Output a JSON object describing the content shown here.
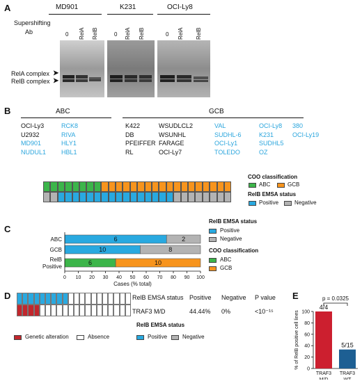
{
  "panels": {
    "A": "A",
    "B": "B",
    "C": "C",
    "D": "D",
    "E": "E"
  },
  "panelA": {
    "cell_lines": [
      "MD901",
      "K231",
      "OCI-Ly8"
    ],
    "lane_labels": [
      "0",
      "RelA",
      "RelB"
    ],
    "supershift_label_1": "Supershifting",
    "supershift_label_2": "Ab",
    "complex_labels": [
      "RelA complex",
      "RelB complex"
    ]
  },
  "panelB": {
    "abc_header": "ABC",
    "gcb_header": "GCB",
    "abc_rows": [
      [
        {
          "t": "OCI-Ly3",
          "pos": false
        },
        {
          "t": "RCK8",
          "pos": true
        }
      ],
      [
        {
          "t": "U2932",
          "pos": false
        },
        {
          "t": "RIVA",
          "pos": true
        }
      ],
      [
        {
          "t": "MD901",
          "pos": true
        },
        {
          "t": "HLY1",
          "pos": true
        }
      ],
      [
        {
          "t": "NUDUL1",
          "pos": true
        },
        {
          "t": "HBL1",
          "pos": true
        }
      ]
    ],
    "gcb_rows": [
      [
        {
          "t": "K422",
          "pos": false
        },
        {
          "t": "WSUDLCL2",
          "pos": false
        },
        {
          "t": "VAL",
          "pos": true
        },
        {
          "t": "OCI-Ly8",
          "pos": true
        },
        {
          "t": "380",
          "pos": true
        }
      ],
      [
        {
          "t": "DB",
          "pos": false
        },
        {
          "t": "WSUNHL",
          "pos": false
        },
        {
          "t": "SUDHL-6",
          "pos": true
        },
        {
          "t": "K231",
          "pos": true
        },
        {
          "t": "OCI-Ly19",
          "pos": true
        }
      ],
      [
        {
          "t": "PFEIFFER",
          "pos": false
        },
        {
          "t": "FARAGE",
          "pos": false
        },
        {
          "t": "OCI-Ly1",
          "pos": true
        },
        {
          "t": "SUDHL5",
          "pos": true
        },
        {
          "t": ""
        }
      ],
      [
        {
          "t": "RL",
          "pos": false
        },
        {
          "t": "OCI-Ly7",
          "pos": false
        },
        {
          "t": "TOLEDO",
          "pos": true
        },
        {
          "t": "OZ",
          "pos": true
        },
        {
          "t": ""
        }
      ]
    ],
    "heatmap": {
      "coo_row": [
        "ABC",
        "ABC",
        "ABC",
        "ABC",
        "ABC",
        "ABC",
        "ABC",
        "ABC",
        "GCB",
        "GCB",
        "GCB",
        "GCB",
        "GCB",
        "GCB",
        "GCB",
        "GCB",
        "GCB",
        "GCB",
        "GCB",
        "GCB",
        "GCB",
        "GCB",
        "GCB",
        "GCB",
        "GCB",
        "GCB"
      ],
      "relb_row": [
        "Negative",
        "Negative",
        "Positive",
        "Positive",
        "Positive",
        "Positive",
        "Positive",
        "Positive",
        "Positive",
        "Positive",
        "Positive",
        "Positive",
        "Positive",
        "Positive",
        "Positive",
        "Positive",
        "Positive",
        "Positive",
        "Negative",
        "Negative",
        "Negative",
        "Negative",
        "Negative",
        "Negative",
        "Negative",
        "Negative"
      ]
    },
    "legend": {
      "coo_title": "COO classification",
      "abc": "ABC",
      "gcb": "GCB",
      "relb_title": "RelB EMSA status",
      "positive": "Positive",
      "negative": "Negative"
    }
  },
  "panelC": {
    "chart_data": {
      "type": "bar",
      "orientation": "horizontal",
      "stacked": true,
      "categories": [
        "ABC",
        "GCB",
        "RelB Positive"
      ],
      "category_labels": [
        [
          "ABC"
        ],
        [
          "GCB"
        ],
        [
          "RelB",
          "Positive"
        ]
      ],
      "groups": [
        {
          "category": "ABC",
          "segments": [
            {
              "name": "Positive",
              "count": "6",
              "value": 75
            },
            {
              "name": "Negative",
              "count": "2",
              "value": 25
            }
          ]
        },
        {
          "category": "GCB",
          "segments": [
            {
              "name": "Positive",
              "count": "10",
              "value": 55.6
            },
            {
              "name": "Negative",
              "count": "8",
              "value": 44.4
            }
          ]
        },
        {
          "category": "RelB Positive",
          "segments": [
            {
              "name": "ABC",
              "count": "6",
              "value": 37.5
            },
            {
              "name": "GCB",
              "count": "10",
              "value": 62.5
            }
          ]
        }
      ],
      "xlim": [
        0,
        100
      ],
      "xticks": [
        "0",
        "10",
        "20",
        "30",
        "40",
        "50",
        "60",
        "70",
        "80",
        "90",
        "100"
      ],
      "xlabel": "Cases (% total)",
      "legend": {
        "relb_title": "RelB EMSA status",
        "positive": "Positive",
        "negative": "Negative",
        "coo_title": "COO classification",
        "abc": "ABC",
        "gcb": "GCB"
      }
    }
  },
  "panelD": {
    "oncoprint": {
      "relb_row": [
        "Positive",
        "Positive",
        "Positive",
        "Positive",
        "Positive",
        "Positive",
        "Positive",
        "Positive",
        "Positive",
        "Absence",
        "Absence",
        "Absence",
        "Absence",
        "Absence",
        "Absence",
        "Absence",
        "Absence",
        "Absence",
        "Absence",
        "Absence"
      ],
      "traf3_row": [
        "Genetic alteration",
        "Genetic alteration",
        "Genetic alteration",
        "Genetic alteration",
        "Absence",
        "Absence",
        "Absence",
        "Absence",
        "Absence",
        "Absence",
        "Absence",
        "Absence",
        "Absence",
        "Absence",
        "Absence",
        "Absence",
        "Absence",
        "Absence",
        "Absence",
        "Absence"
      ]
    },
    "table": {
      "headers": [
        "RelB EMSA status",
        "Positive",
        "Negative",
        "P value"
      ],
      "row": [
        "TRAF3 M/D",
        "44.44%",
        "0%",
        "<10⁻¹⁵"
      ]
    },
    "legend": {
      "alteration": "Genetic alteration",
      "absence": "Absence",
      "relb_title": "RelB EMSA status",
      "positive": "Positive",
      "negative": "Negative"
    }
  },
  "panelE": {
    "chart_data": {
      "type": "bar",
      "categories": [
        [
          "TRAF3",
          "M/D"
        ],
        [
          "TRAF3",
          "WT"
        ]
      ],
      "values": [
        100,
        33.3
      ],
      "bar_labels": [
        "4/4",
        "5/15"
      ],
      "colors": [
        "#cc1f2f",
        "#1d5f93"
      ],
      "ylabel": "% of RelB positive cell lines",
      "ylim": [
        0,
        100
      ],
      "yticks": [
        "0",
        "20",
        "40",
        "60",
        "80",
        "100"
      ],
      "annotation": "p = 0.0325"
    }
  },
  "colors": {
    "abc_green": "#3cb54a",
    "gcb_orange": "#f7941d",
    "positive_blue": "#29a9e0",
    "negative_gray": "#b3b3b3",
    "alteration_red": "#c2272d",
    "cell_blue": "#2aa5dd"
  }
}
